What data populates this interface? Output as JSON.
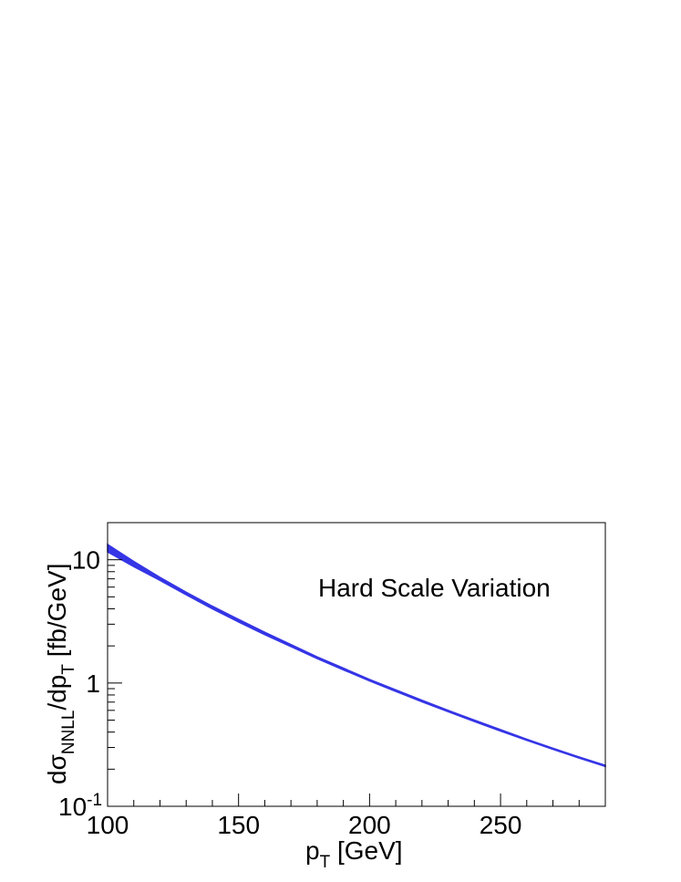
{
  "chart_data": {
    "type": "area",
    "title": "",
    "xlabel": {
      "base": "p",
      "sub": "T",
      "suffix": " [GeV]"
    },
    "ylabel": {
      "prefix": "dσ",
      "sub1": "NNLL",
      "mid": "/dp",
      "sub2": "T",
      "suffix": " [fb/GeV]"
    },
    "xlim": [
      100,
      290
    ],
    "ylim": [
      0.1,
      20
    ],
    "yscale": "log",
    "grid": false,
    "x_ticks": [
      {
        "value": 100,
        "label": "100"
      },
      {
        "value": 150,
        "label": "150"
      },
      {
        "value": 200,
        "label": "200"
      },
      {
        "value": 250,
        "label": "250"
      }
    ],
    "y_ticks": [
      {
        "value": 0.1,
        "base": "10",
        "exp": "-1"
      },
      {
        "value": 1,
        "base": "1",
        "exp": ""
      },
      {
        "value": 10,
        "base": "10",
        "exp": ""
      }
    ],
    "annotation": "Hard Scale Variation",
    "band_color": "#3535e6",
    "series": [
      {
        "x": [
          100,
          110,
          120,
          130,
          140,
          150,
          160,
          170,
          180,
          190,
          200,
          210,
          220,
          230,
          240,
          250,
          260,
          270,
          280,
          290
        ],
        "upper": [
          13.3,
          9.7,
          7.2,
          5.45,
          4.2,
          3.28,
          2.58,
          2.05,
          1.63,
          1.32,
          1.07,
          0.88,
          0.725,
          0.6,
          0.5,
          0.418,
          0.35,
          0.296,
          0.251,
          0.215
        ],
        "lower": [
          11.6,
          8.8,
          6.8,
          5.2,
          4.0,
          3.13,
          2.47,
          1.97,
          1.58,
          1.28,
          1.04,
          0.855,
          0.705,
          0.585,
          0.488,
          0.408,
          0.343,
          0.29,
          0.246,
          0.21
        ]
      }
    ]
  }
}
